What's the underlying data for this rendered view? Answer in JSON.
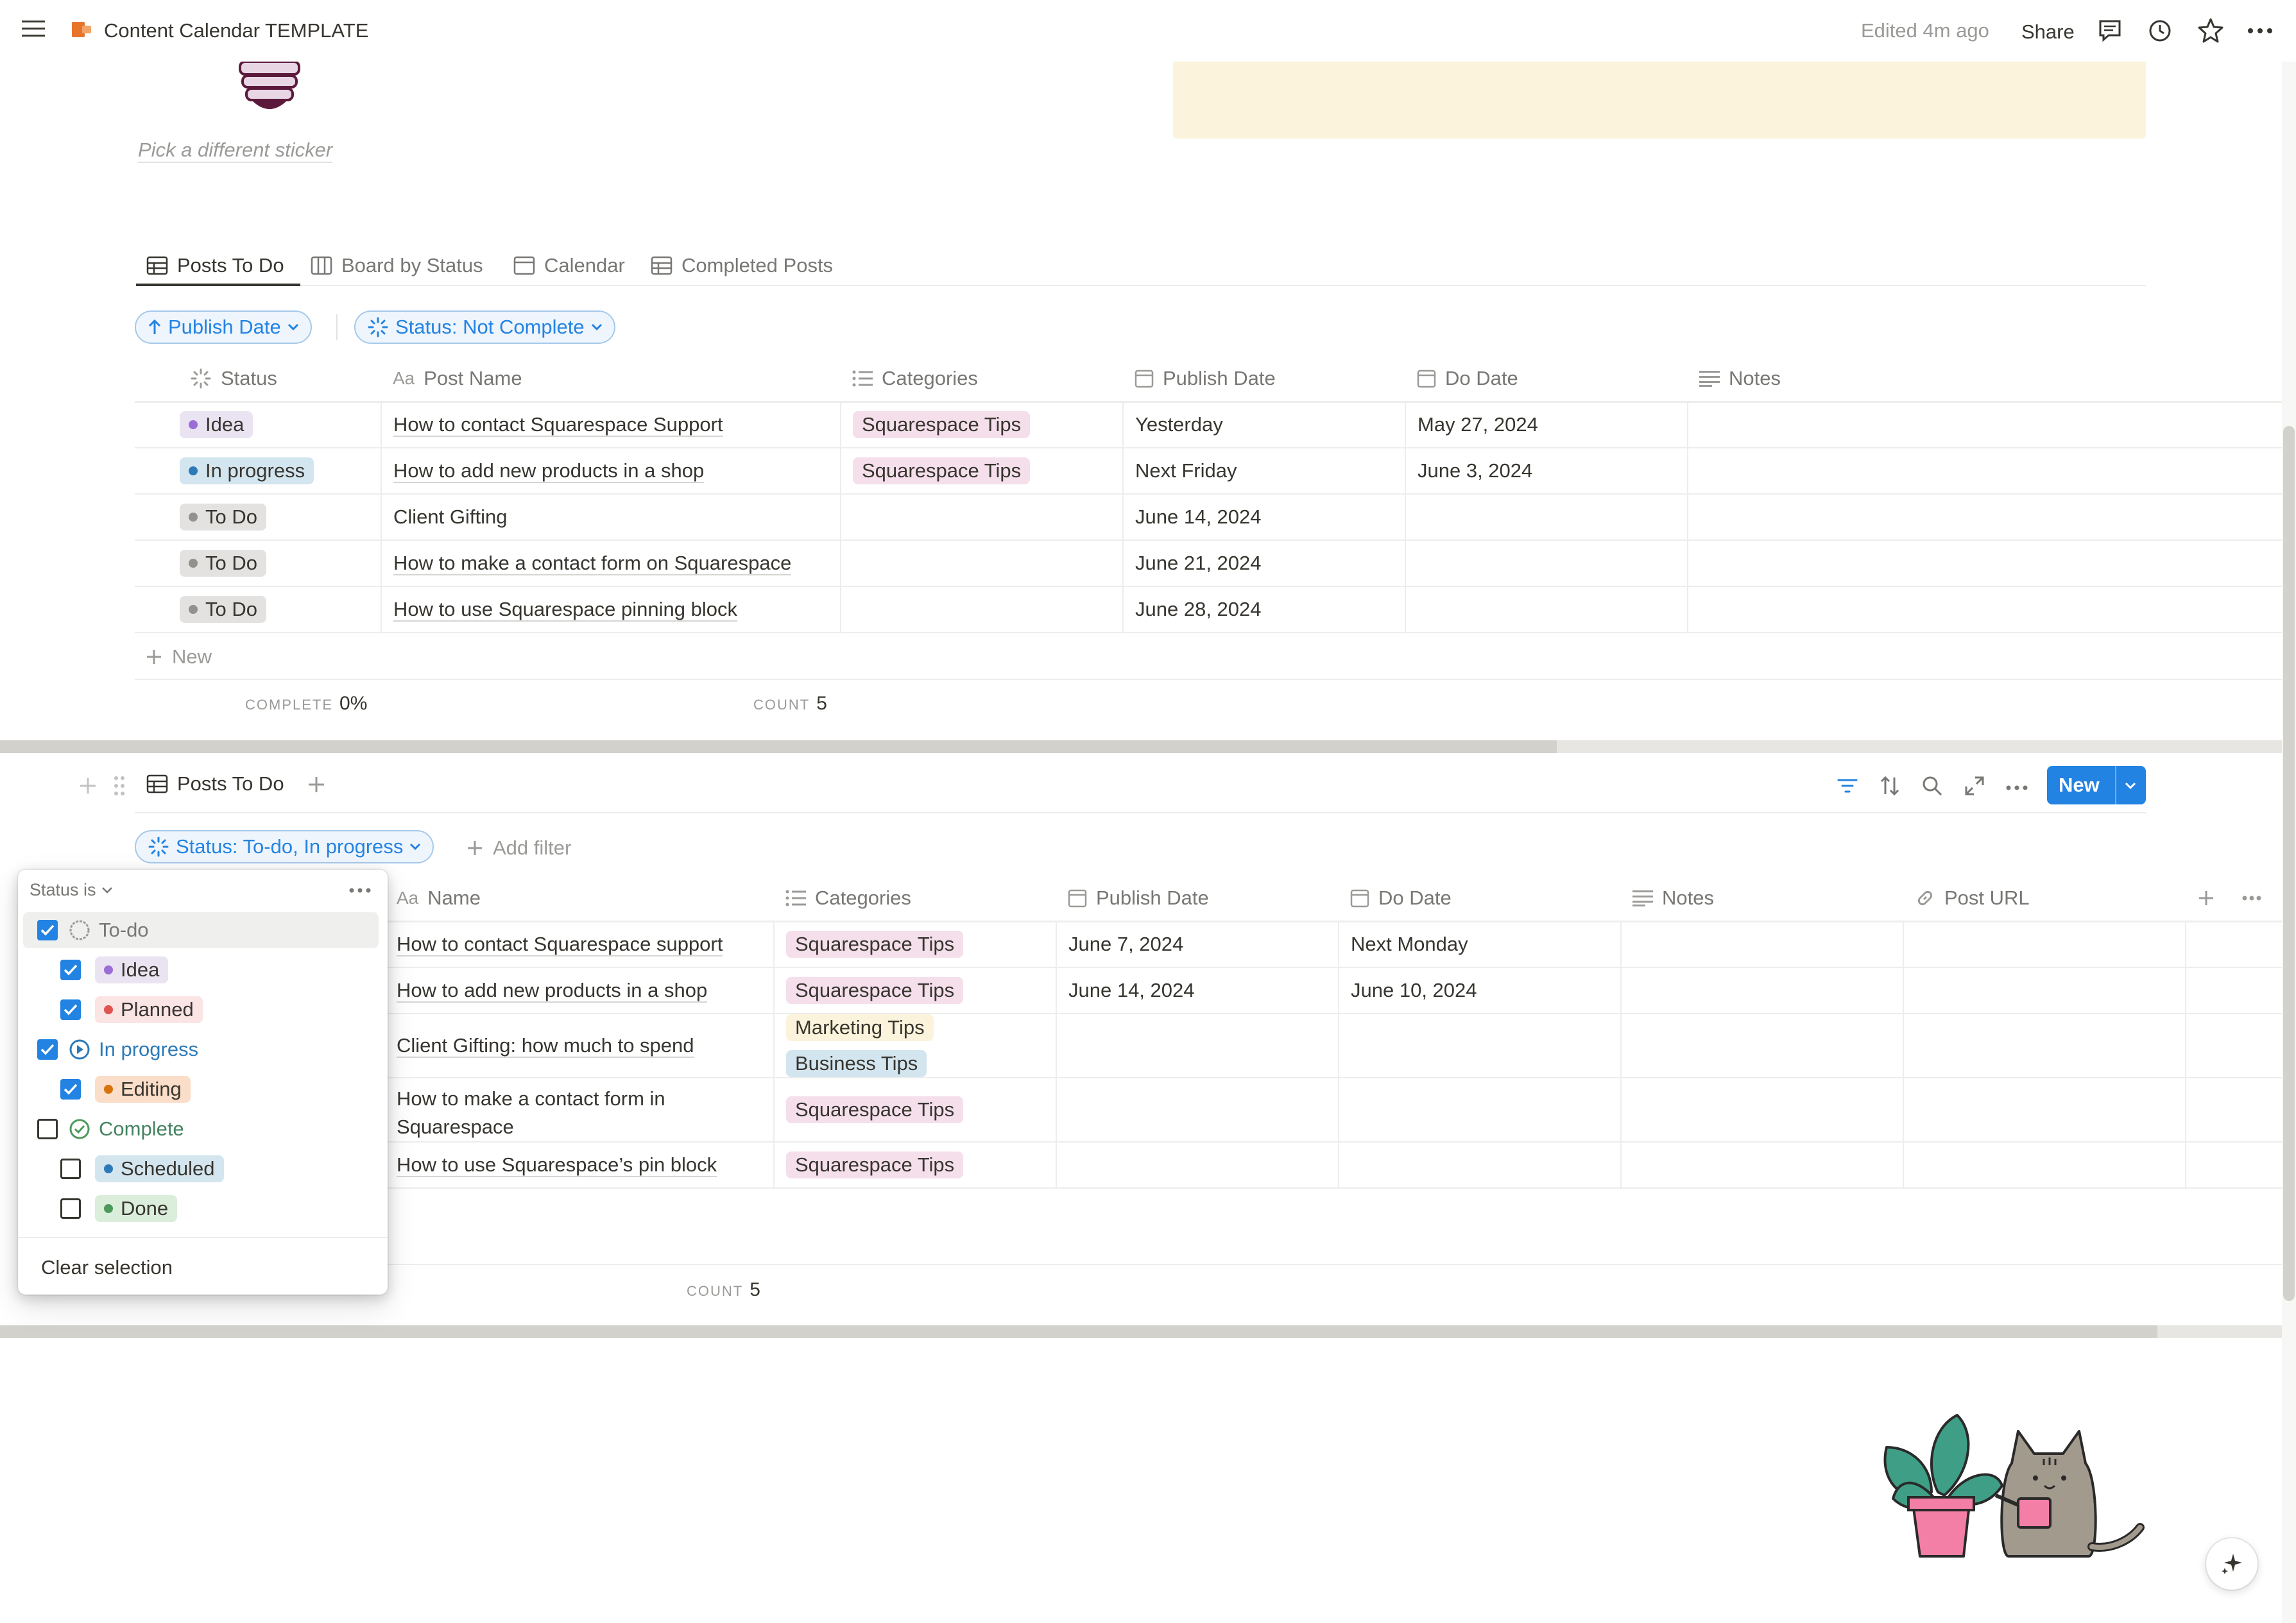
{
  "topbar": {
    "title": "Content Calendar TEMPLATE",
    "edited": "Edited 4m ago",
    "share": "Share"
  },
  "sticker": {
    "pick_label": "Pick a different sticker"
  },
  "view1": {
    "tabs": [
      {
        "label": "Posts To Do"
      },
      {
        "label": "Board by Status"
      },
      {
        "label": "Calendar"
      },
      {
        "label": "Completed Posts"
      }
    ],
    "sort_chip": "Publish Date",
    "filter_chip": "Status: Not Complete",
    "columns": [
      "Status",
      "Post Name",
      "Categories",
      "Publish Date",
      "Do Date",
      "Notes"
    ],
    "rows": [
      {
        "status": "Idea",
        "name": "How to contact Squarespace Support",
        "category": "Squarespace Tips",
        "publish": "Yesterday",
        "do": "May 27, 2024"
      },
      {
        "status": "In progress",
        "name": "How to add new products in a shop",
        "category": "Squarespace Tips",
        "publish": "Next Friday",
        "do": "June 3, 2024"
      },
      {
        "status": "To Do",
        "name": "Client Gifting",
        "category": "",
        "publish": "June 14, 2024",
        "do": ""
      },
      {
        "status": "To Do",
        "name": "How to make a contact form on Squarespace",
        "category": "",
        "publish": "June 21, 2024",
        "do": ""
      },
      {
        "status": "To Do",
        "name": "How to use Squarespace pinning block",
        "category": "",
        "publish": "June 28, 2024",
        "do": ""
      }
    ],
    "new_label": "New",
    "complete_label": "COMPLETE",
    "complete_value": "0%",
    "count_label": "COUNT",
    "count_value": "5"
  },
  "view2": {
    "tab_label": "Posts To Do",
    "new_button": "New",
    "filter_chip": "Status: To-do, In progress",
    "add_filter": "Add filter",
    "columns": [
      "Name",
      "Categories",
      "Publish Date",
      "Do Date",
      "Notes",
      "Post URL"
    ],
    "rows": [
      {
        "name": "How to contact Squarespace support",
        "categories": [
          "Squarespace Tips"
        ],
        "publish": "June 7, 2024",
        "do": "Next Monday"
      },
      {
        "name": "How to add new products in a shop",
        "categories": [
          "Squarespace Tips"
        ],
        "publish": "June 14, 2024",
        "do": "June 10, 2024"
      },
      {
        "name": "Client Gifting: how much to spend",
        "categories": [
          "Marketing Tips",
          "Business Tips"
        ],
        "publish": "",
        "do": ""
      },
      {
        "name": "How to make a contact form in Squarespace",
        "categories": [
          "Squarespace Tips"
        ],
        "publish": "",
        "do": ""
      },
      {
        "name": "How to use Squarespace’s pin block",
        "categories": [
          "Squarespace Tips"
        ],
        "publish": "",
        "do": ""
      }
    ],
    "count_label": "COUNT",
    "count_value": "5"
  },
  "dropdown": {
    "header": "Status is",
    "groups": [
      {
        "label": "To-do",
        "checked": true
      },
      {
        "label": "Idea",
        "checked": true
      },
      {
        "label": "Planned",
        "checked": true
      },
      {
        "label": "In progress",
        "checked": true
      },
      {
        "label": "Editing",
        "checked": true
      },
      {
        "label": "Complete",
        "checked": false
      },
      {
        "label": "Scheduled",
        "checked": false
      },
      {
        "label": "Done",
        "checked": false
      }
    ],
    "clear": "Clear selection"
  },
  "colors": {
    "accent": "#2383e2",
    "callout_bg": "#fbf3db",
    "text": "#37352f"
  }
}
